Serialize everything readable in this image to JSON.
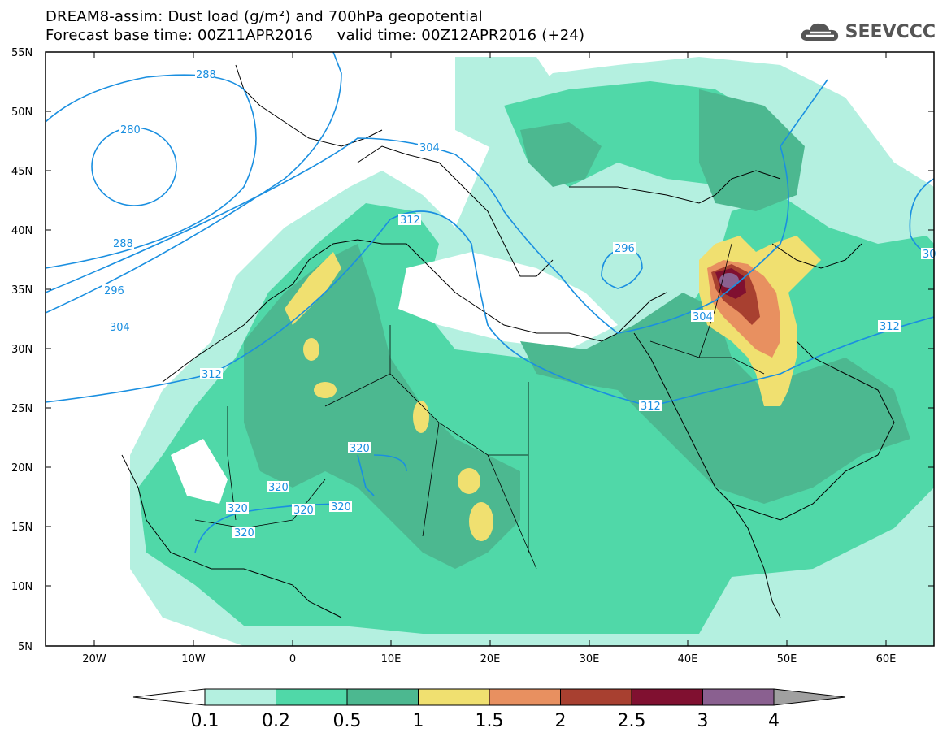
{
  "title": {
    "line1": "DREAM8-assim: Dust load (g/m²) and 700hPa geopotential",
    "line2": "Forecast base time: 00Z11APR2016     valid time: 00Z12APR2016 (+24)"
  },
  "logo": {
    "text": "SEEVCCC",
    "icon": "cloud-icon"
  },
  "axes": {
    "lat_labels": [
      "55N",
      "50N",
      "45N",
      "40N",
      "35N",
      "30N",
      "25N",
      "20N",
      "15N",
      "10N",
      "5N"
    ],
    "lon_labels": [
      "20W",
      "10W",
      "0",
      "10E",
      "20E",
      "30E",
      "40E",
      "50E",
      "60E"
    ]
  },
  "contours": {
    "color": "#1a8fe0",
    "labels": [
      {
        "text": "288"
      },
      {
        "text": "280"
      },
      {
        "text": "288"
      },
      {
        "text": "296"
      },
      {
        "text": "304"
      },
      {
        "text": "304"
      },
      {
        "text": "312"
      },
      {
        "text": "312"
      },
      {
        "text": "296"
      },
      {
        "text": "304"
      },
      {
        "text": "312"
      },
      {
        "text": "312"
      },
      {
        "text": "320"
      },
      {
        "text": "320"
      },
      {
        "text": "320"
      },
      {
        "text": "320"
      },
      {
        "text": "320"
      },
      {
        "text": "320"
      },
      {
        "text": "30"
      }
    ]
  },
  "colorbar": {
    "labels": [
      "0.1",
      "0.2",
      "0.5",
      "1",
      "1.5",
      "2",
      "2.5",
      "3",
      "4"
    ],
    "colors": [
      "#b4f0e0",
      "#50d8a8",
      "#4cb890",
      "#f0e070",
      "#e89060",
      "#a84030",
      "#801030",
      "#8a6090"
    ],
    "left_arrow_color": "#ffffff",
    "right_arrow_color": "#a0a0a0"
  },
  "palette": {
    "lightcyan": "#b4f0e0",
    "green": "#50d8a8",
    "darkgreen": "#4cb890",
    "yellow": "#f0e070",
    "orange": "#e89060",
    "brown": "#a84030",
    "maroon": "#801030",
    "purple": "#8a6090"
  }
}
